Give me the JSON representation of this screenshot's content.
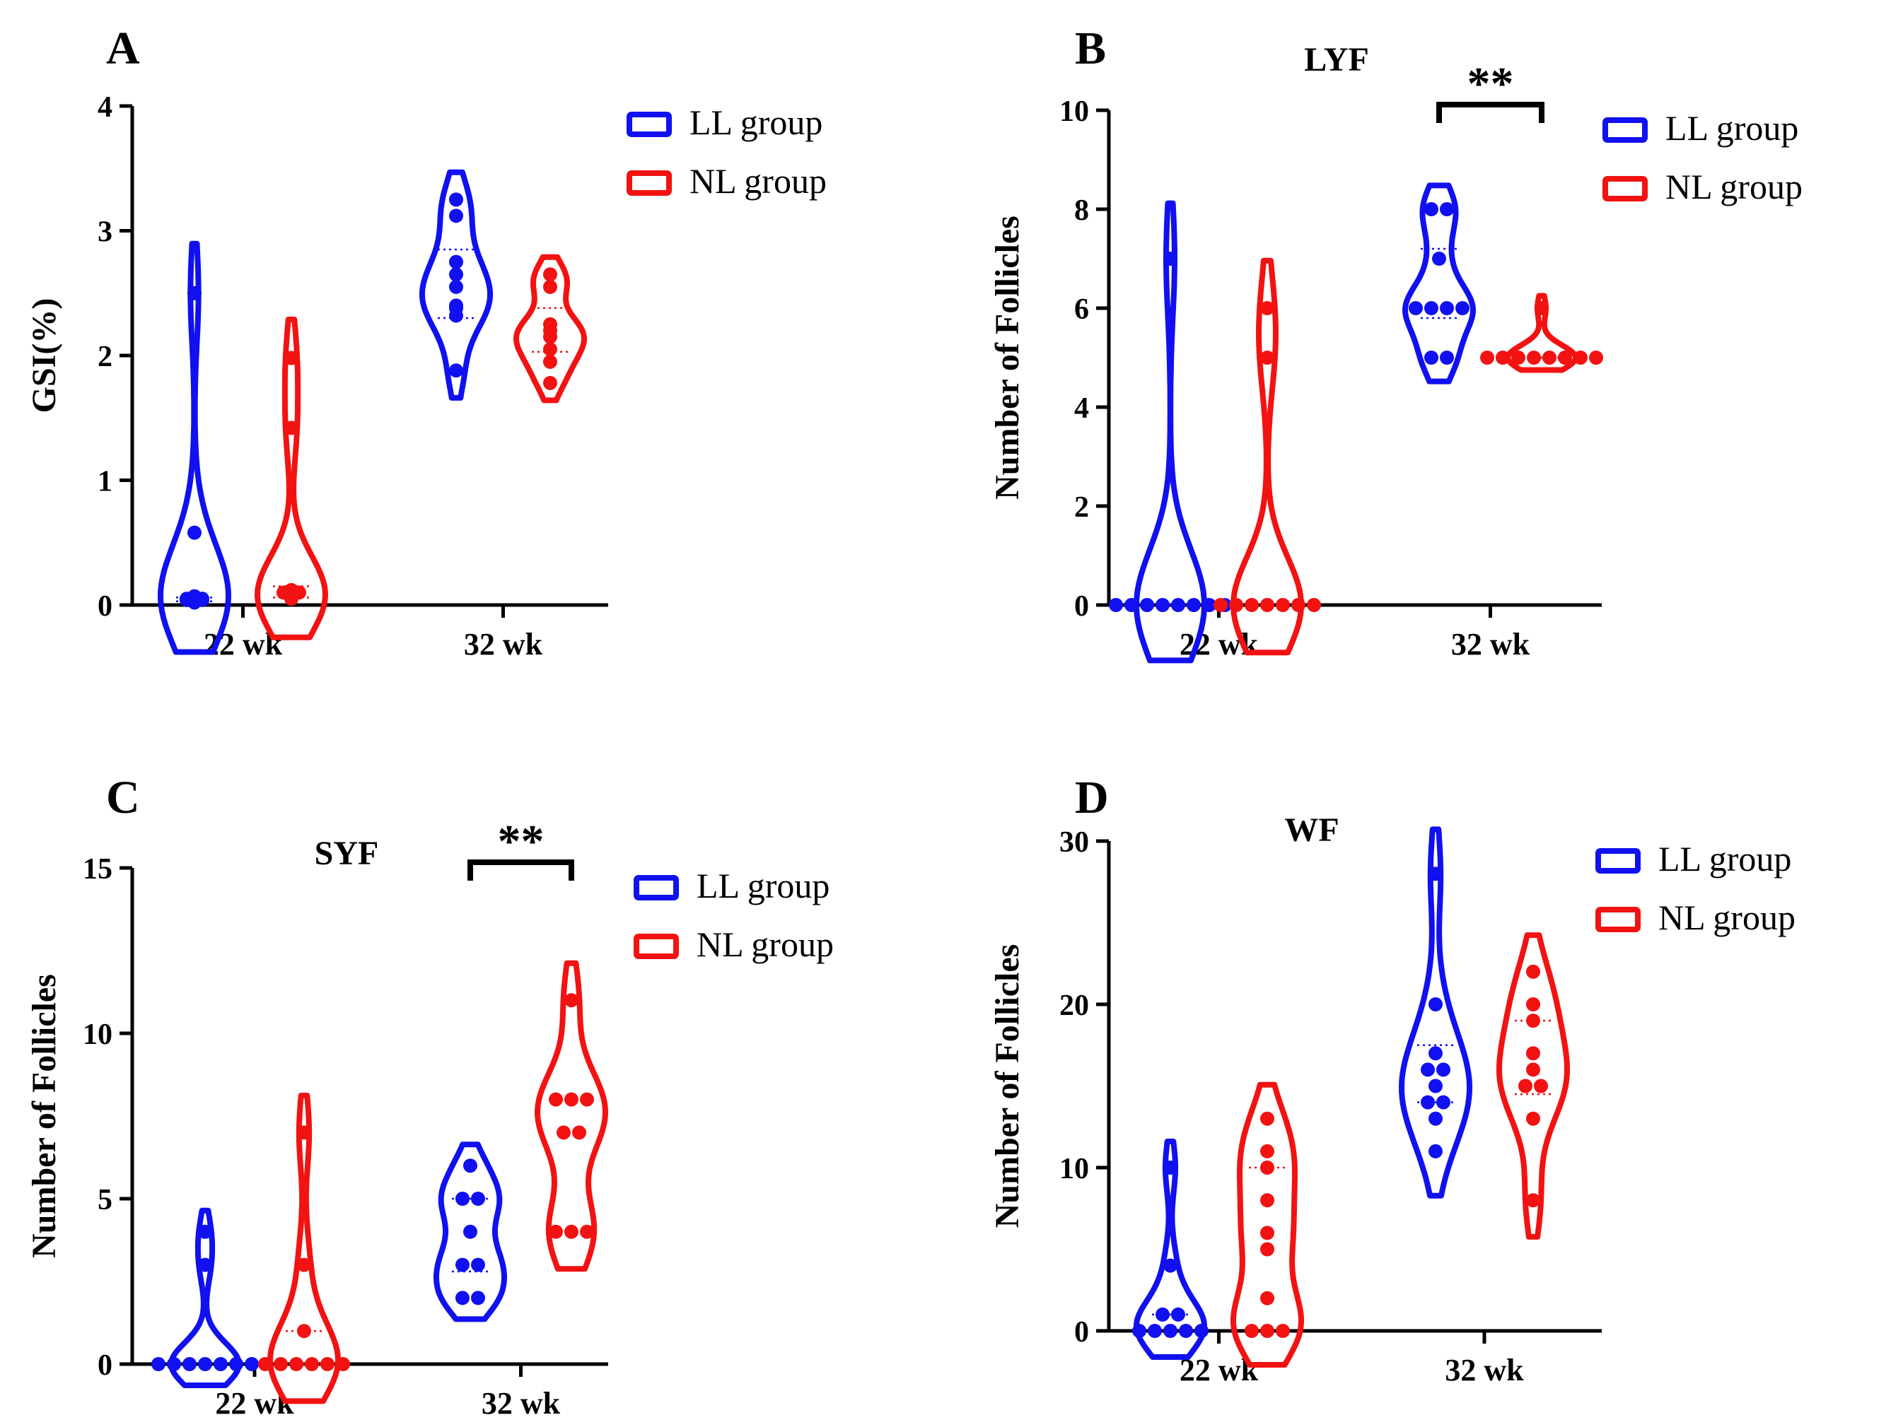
{
  "legend": {
    "ll_label": "LL group",
    "nl_label": "NL group"
  },
  "colors": {
    "ll": "#1010f0",
    "nl": "#f21212",
    "axis": "#000000"
  },
  "chart_data": [
    {
      "panel": "A",
      "type": "violin",
      "title": "",
      "ylabel": "GSI(%)",
      "categories": [
        "22 wk",
        "32 wk"
      ],
      "ylim": [
        0,
        4
      ],
      "yticks": [
        0,
        1,
        2,
        3,
        4
      ],
      "legend_position": "top-right",
      "series": [
        {
          "name": "LL group",
          "groups": [
            {
              "category": "22 wk",
              "points": [
                2.5,
                0.58,
                0.07,
                0.06,
                0.05,
                0.05,
                0.04,
                0.04,
                0.03,
                0.02
              ],
              "quartiles": [
                0.03,
                0.06
              ]
            },
            {
              "category": "32 wk",
              "points": [
                3.25,
                3.12,
                2.75,
                2.65,
                2.55,
                2.4,
                2.38,
                2.32,
                1.88
              ],
              "quartiles": [
                2.3,
                2.85
              ]
            }
          ]
        },
        {
          "name": "NL group",
          "groups": [
            {
              "category": "22 wk",
              "points": [
                1.98,
                1.42,
                0.12,
                0.1,
                0.1,
                0.08,
                0.07,
                0.06,
                0.05
              ],
              "quartiles": [
                0.06,
                0.15
              ]
            },
            {
              "category": "32 wk",
              "points": [
                2.65,
                2.55,
                2.25,
                2.2,
                2.15,
                2.05,
                1.95,
                1.78
              ],
              "quartiles": [
                2.03,
                2.38
              ]
            }
          ]
        }
      ]
    },
    {
      "panel": "B",
      "type": "violin",
      "title": "LYF",
      "ylabel": "Number of Follicles",
      "categories": [
        "22 wk",
        "32 wk"
      ],
      "ylim": [
        0,
        10
      ],
      "yticks": [
        0,
        2,
        4,
        6,
        8,
        10
      ],
      "legend_position": "top-right",
      "significance": {
        "label": "**",
        "category": "32 wk"
      },
      "series": [
        {
          "name": "LL group",
          "groups": [
            {
              "category": "22 wk",
              "points": [
                7,
                0,
                0,
                0,
                0,
                0,
                0,
                0,
                0
              ],
              "quartiles": [
                0,
                0
              ]
            },
            {
              "category": "32 wk",
              "points": [
                8,
                8,
                7,
                6,
                6,
                6,
                6,
                5,
                5
              ],
              "quartiles": [
                5.8,
                7.2
              ]
            }
          ]
        },
        {
          "name": "NL group",
          "groups": [
            {
              "category": "22 wk",
              "points": [
                6,
                5,
                0,
                0,
                0,
                0,
                0,
                0,
                0
              ],
              "quartiles": [
                0,
                0
              ]
            },
            {
              "category": "32 wk",
              "points": [
                6,
                5,
                5,
                5,
                5,
                5,
                5,
                5,
                5
              ],
              "quartiles": [
                5,
                5
              ]
            }
          ]
        }
      ]
    },
    {
      "panel": "C",
      "type": "violin",
      "title": "SYF",
      "ylabel": "Number of Follicles",
      "categories": [
        "22 wk",
        "32 wk"
      ],
      "ylim": [
        0,
        15
      ],
      "yticks": [
        0,
        5,
        10,
        15
      ],
      "legend_position": "top-right",
      "significance": {
        "label": "**",
        "category": "32 wk"
      },
      "series": [
        {
          "name": "LL group",
          "groups": [
            {
              "category": "22 wk",
              "points": [
                4,
                3,
                0,
                0,
                0,
                0,
                0,
                0,
                0
              ],
              "quartiles": [
                0,
                0
              ]
            },
            {
              "category": "32 wk",
              "points": [
                6,
                5,
                5,
                4,
                3,
                3,
                2,
                2
              ],
              "quartiles": [
                2.8,
                5
              ]
            }
          ]
        },
        {
          "name": "NL group",
          "groups": [
            {
              "category": "22 wk",
              "points": [
                7,
                3,
                1,
                0,
                0,
                0,
                0,
                0,
                0
              ],
              "quartiles": [
                0,
                1
              ]
            },
            {
              "category": "32 wk",
              "points": [
                11,
                8,
                8,
                8,
                7,
                7,
                4,
                4,
                4
              ],
              "quartiles": [
                4,
                8
              ]
            }
          ]
        }
      ]
    },
    {
      "panel": "D",
      "type": "violin",
      "title": "WF",
      "ylabel": "Number of Follicles",
      "categories": [
        "22 wk",
        "32 wk"
      ],
      "ylim": [
        0,
        30
      ],
      "yticks": [
        0,
        10,
        20,
        30
      ],
      "legend_position": "top-right",
      "series": [
        {
          "name": "LL group",
          "groups": [
            {
              "category": "22 wk",
              "points": [
                10,
                4,
                1,
                1,
                0,
                0,
                0,
                0,
                0
              ],
              "quartiles": [
                0,
                1
              ]
            },
            {
              "category": "32 wk",
              "points": [
                28,
                20,
                17,
                16,
                16,
                15,
                14,
                14,
                13,
                11
              ],
              "quartiles": [
                14,
                17.5
              ]
            }
          ]
        },
        {
          "name": "NL group",
          "groups": [
            {
              "category": "22 wk",
              "points": [
                13,
                11,
                10,
                8,
                6,
                5,
                2,
                0,
                0,
                0
              ],
              "quartiles": [
                0,
                10
              ]
            },
            {
              "category": "32 wk",
              "points": [
                22,
                20,
                19,
                17,
                16,
                15,
                15,
                13,
                8
              ],
              "quartiles": [
                14.5,
                19
              ]
            }
          ]
        }
      ]
    }
  ]
}
